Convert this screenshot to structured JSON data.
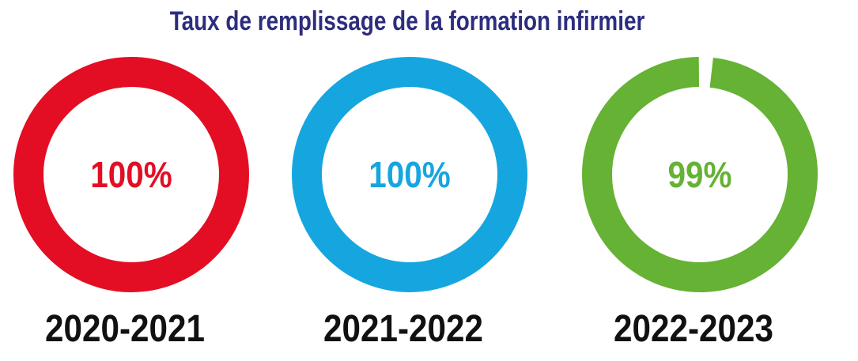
{
  "chart_data": {
    "type": "pie",
    "title": "Taux de remplissage de la formation infirmier",
    "categories": [
      "2020-2021",
      "2021-2022",
      "2022-2023"
    ],
    "values": [
      100,
      100,
      99
    ],
    "value_labels": [
      "100%",
      "100%",
      "99%"
    ],
    "unit": "%",
    "max": 100,
    "colors": [
      "#e30e24",
      "#16a6df",
      "#65b234"
    ],
    "background_color": "#ffffff",
    "title_color": "#2d2d7f",
    "year_color": "#111111"
  }
}
